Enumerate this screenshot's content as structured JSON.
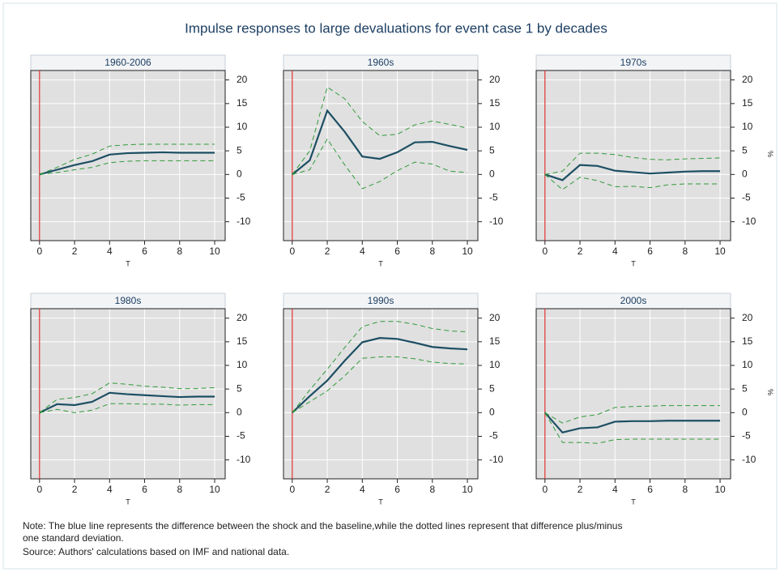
{
  "title": "Impulse responses to large devaluations for event case 1 by decades",
  "notes": [
    "Note: The blue line represents the difference between the shock and the baseline,while the dotted lines represent that difference plus/minus",
    "one standard deviation.",
    "Source: Authors' calculations based on IMF and national data."
  ],
  "chart_data": [
    {
      "type": "line",
      "title": "1960-2006",
      "xlabel": "T",
      "x": [
        0,
        1,
        2,
        3,
        4,
        5,
        6,
        7,
        8,
        9,
        10
      ],
      "xlim": [
        -0.5,
        10.6
      ],
      "ylim": [
        -14,
        22
      ],
      "xticks": [
        0,
        2,
        4,
        6,
        8,
        10
      ],
      "yticks": [
        -10,
        -5,
        0,
        5,
        10,
        15,
        20
      ],
      "grid": true,
      "vline": 0,
      "vline_color": "#e03030",
      "series": [
        {
          "color": "#1d4f63",
          "values": [
            0,
            1,
            2,
            2.8,
            4.2,
            4.5,
            4.6,
            4.7,
            4.6,
            4.6,
            4.6
          ]
        },
        {
          "color": "#2f9a3a",
          "dashed": true,
          "values": [
            0,
            1.5,
            3.2,
            4.3,
            6,
            6.3,
            6.4,
            6.4,
            6.4,
            6.4,
            6.4
          ]
        },
        {
          "color": "#2f9a3a",
          "dashed": true,
          "values": [
            0,
            0.4,
            1,
            1.5,
            2.5,
            2.8,
            2.9,
            2.9,
            2.9,
            2.9,
            2.9
          ]
        }
      ]
    },
    {
      "type": "line",
      "title": "1960s",
      "xlabel": "T",
      "x": [
        0,
        1,
        2,
        3,
        4,
        5,
        6,
        7,
        8,
        9,
        10
      ],
      "xlim": [
        -0.5,
        10.6
      ],
      "ylim": [
        -14,
        22
      ],
      "xticks": [
        0,
        2,
        4,
        6,
        8,
        10
      ],
      "yticks": [
        -10,
        -5,
        0,
        5,
        10,
        15,
        20
      ],
      "grid": true,
      "vline": 0,
      "vline_color": "#e03030",
      "series": [
        {
          "color": "#1d4f63",
          "values": [
            0,
            3,
            13.5,
            9,
            3.8,
            3.3,
            4.7,
            6.8,
            6.9,
            6,
            5.2
          ]
        },
        {
          "color": "#2f9a3a",
          "dashed": true,
          "values": [
            0,
            5,
            18.5,
            16,
            11.2,
            8.2,
            8.5,
            10.5,
            11.3,
            10.6,
            9.8
          ]
        },
        {
          "color": "#2f9a3a",
          "dashed": true,
          "values": [
            0,
            1,
            7.5,
            2,
            -3,
            -1.5,
            0.8,
            2.6,
            2.2,
            0.7,
            0.4
          ]
        }
      ]
    },
    {
      "type": "line",
      "title": "1970s",
      "xlabel": "T",
      "ylabel": "%",
      "x": [
        0,
        1,
        2,
        3,
        4,
        5,
        6,
        7,
        8,
        9,
        10
      ],
      "xlim": [
        -0.5,
        10.6
      ],
      "ylim": [
        -14,
        22
      ],
      "xticks": [
        0,
        2,
        4,
        6,
        8,
        10
      ],
      "yticks": [
        -10,
        -5,
        0,
        5,
        10,
        15,
        20
      ],
      "grid": true,
      "vline": 0,
      "vline_color": "#e03030",
      "series": [
        {
          "color": "#1d4f63",
          "values": [
            0,
            -1.2,
            2,
            1.8,
            0.8,
            0.5,
            0.2,
            0.4,
            0.6,
            0.7,
            0.7
          ]
        },
        {
          "color": "#2f9a3a",
          "dashed": true,
          "values": [
            0,
            0.7,
            4.5,
            4.5,
            4.2,
            3.6,
            3.2,
            3.1,
            3.3,
            3.4,
            3.5
          ]
        },
        {
          "color": "#2f9a3a",
          "dashed": true,
          "values": [
            0,
            -3.2,
            -0.6,
            -1.3,
            -2.6,
            -2.5,
            -2.8,
            -2.2,
            -2,
            -2,
            -2
          ]
        }
      ]
    },
    {
      "type": "line",
      "title": "1980s",
      "xlabel": "T",
      "x": [
        0,
        1,
        2,
        3,
        4,
        5,
        6,
        7,
        8,
        9,
        10
      ],
      "xlim": [
        -0.5,
        10.6
      ],
      "ylim": [
        -14,
        22
      ],
      "xticks": [
        0,
        2,
        4,
        6,
        8,
        10
      ],
      "yticks": [
        -10,
        -5,
        0,
        5,
        10,
        15,
        20
      ],
      "grid": true,
      "vline": 0,
      "vline_color": "#e03030",
      "series": [
        {
          "color": "#1d4f63",
          "values": [
            0,
            1.8,
            1.6,
            2.3,
            4.2,
            3.9,
            3.7,
            3.5,
            3.3,
            3.4,
            3.4
          ]
        },
        {
          "color": "#2f9a3a",
          "dashed": true,
          "values": [
            0,
            2.8,
            3.2,
            4,
            6.3,
            6,
            5.6,
            5.4,
            5.1,
            5.1,
            5.3
          ]
        },
        {
          "color": "#2f9a3a",
          "dashed": true,
          "values": [
            0,
            0.7,
            0,
            0.5,
            1.9,
            1.9,
            1.8,
            1.8,
            1.6,
            1.7,
            1.7
          ]
        }
      ]
    },
    {
      "type": "line",
      "title": "1990s",
      "xlabel": "T",
      "x": [
        0,
        1,
        2,
        3,
        4,
        5,
        6,
        7,
        8,
        9,
        10
      ],
      "xlim": [
        -0.5,
        10.6
      ],
      "ylim": [
        -14,
        22
      ],
      "xticks": [
        0,
        2,
        4,
        6,
        8,
        10
      ],
      "yticks": [
        -10,
        -5,
        0,
        5,
        10,
        15,
        20
      ],
      "grid": true,
      "vline": 0,
      "vline_color": "#e03030",
      "series": [
        {
          "color": "#1d4f63",
          "values": [
            0,
            3.5,
            6.8,
            11,
            14.9,
            15.8,
            15.6,
            14.8,
            13.9,
            13.6,
            13.4
          ]
        },
        {
          "color": "#2f9a3a",
          "dashed": true,
          "values": [
            0,
            4.8,
            9.2,
            13.8,
            18.2,
            19.3,
            19.3,
            18.7,
            17.8,
            17.3,
            17.1
          ]
        },
        {
          "color": "#2f9a3a",
          "dashed": true,
          "values": [
            0,
            2.3,
            4.6,
            7.8,
            11.5,
            11.8,
            11.8,
            11.4,
            10.7,
            10.4,
            10.3
          ]
        }
      ]
    },
    {
      "type": "line",
      "title": "2000s",
      "xlabel": "T",
      "ylabel": "%",
      "x": [
        0,
        1,
        2,
        3,
        4,
        5,
        6,
        7,
        8,
        9,
        10
      ],
      "xlim": [
        -0.5,
        10.6
      ],
      "ylim": [
        -14,
        22
      ],
      "xticks": [
        0,
        2,
        4,
        6,
        8,
        10
      ],
      "yticks": [
        -10,
        -5,
        0,
        5,
        10,
        15,
        20
      ],
      "grid": true,
      "vline": 0,
      "vline_color": "#e03030",
      "series": [
        {
          "color": "#1d4f63",
          "values": [
            0,
            -4.2,
            -3.3,
            -3.1,
            -1.9,
            -1.8,
            -1.8,
            -1.7,
            -1.7,
            -1.7,
            -1.7
          ]
        },
        {
          "color": "#2f9a3a",
          "dashed": true,
          "values": [
            0,
            -2.2,
            -0.9,
            -0.4,
            1.1,
            1.3,
            1.4,
            1.5,
            1.5,
            1.5,
            1.5
          ]
        },
        {
          "color": "#2f9a3a",
          "dashed": true,
          "values": [
            0,
            -6.3,
            -6.3,
            -6.5,
            -5.7,
            -5.6,
            -5.6,
            -5.6,
            -5.6,
            -5.6,
            -5.6
          ]
        }
      ]
    }
  ]
}
